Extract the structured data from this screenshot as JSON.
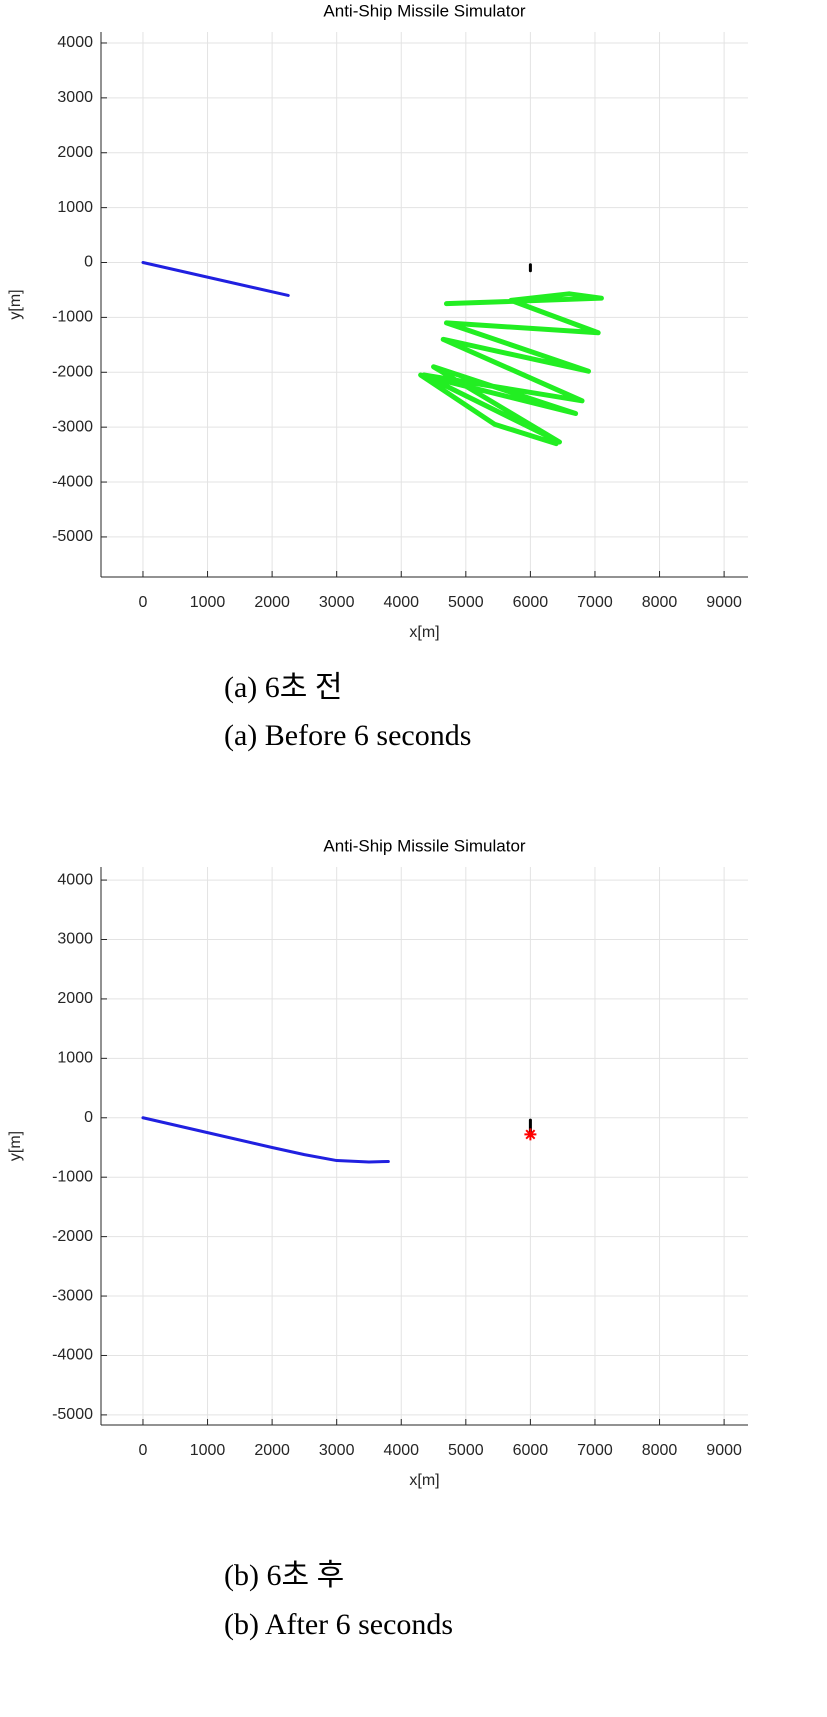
{
  "chart_data": [
    {
      "type": "line",
      "title": "Anti-Ship Missile Simulator",
      "x_label": "x[m]",
      "y_label": "y[m]",
      "xlim": [
        -650,
        9370
      ],
      "ylim": [
        -5730,
        4200
      ],
      "xticks": [
        0,
        1000,
        2000,
        3000,
        4000,
        5000,
        6000,
        7000,
        8000,
        9000
      ],
      "yticks": [
        -5000,
        -4000,
        -3000,
        -2000,
        -1000,
        0,
        1000,
        2000,
        3000,
        4000
      ],
      "grid": true,
      "series": [
        {
          "color": "#2020e0",
          "x": [
            0,
            2250
          ],
          "values": [
            0,
            -600
          ]
        },
        {
          "color": "#22ee22",
          "x": [
            4700,
            7100,
            6600,
            5700,
            7050,
            4700,
            6900,
            4650,
            6800,
            4350,
            6450,
            4500,
            6700,
            4300,
            5450,
            6400
          ],
          "values": [
            -750,
            -650,
            -570,
            -690,
            -1280,
            -1100,
            -1980,
            -1400,
            -2520,
            -2050,
            -3270,
            -1900,
            -2750,
            -2050,
            -2950,
            -3300
          ]
        },
        {
          "color": "#000000",
          "x": [
            6000,
            6000
          ],
          "values": [
            -40,
            -150
          ]
        }
      ],
      "caption": [
        "(a) 6초 전",
        "(a) Before 6 seconds"
      ]
    },
    {
      "type": "line",
      "title": "Anti-Ship Missile Simulator",
      "x_label": "x[m]",
      "y_label": "y[m]",
      "xlim": [
        -650,
        9370
      ],
      "ylim": [
        -5170,
        4220
      ],
      "xticks": [
        0,
        1000,
        2000,
        3000,
        4000,
        5000,
        6000,
        7000,
        8000,
        9000
      ],
      "yticks": [
        -5000,
        -4000,
        -3000,
        -2000,
        -1000,
        0,
        1000,
        2000,
        3000,
        4000
      ],
      "grid": true,
      "series": [
        {
          "color": "#2020e0",
          "x": [
            0,
            1000,
            2000,
            2500,
            3000,
            3500,
            3800
          ],
          "values": [
            0,
            -250,
            -500,
            -620,
            -720,
            -745,
            -735
          ]
        },
        {
          "color": "#000000",
          "x": [
            6000,
            6000
          ],
          "values": [
            -40,
            -230
          ]
        },
        {
          "color": "#ff0000",
          "marker": "*",
          "x": [
            6000
          ],
          "values": [
            -280
          ]
        }
      ],
      "caption": [
        "(b) 6초 후",
        "(b) After 6 seconds"
      ]
    }
  ]
}
